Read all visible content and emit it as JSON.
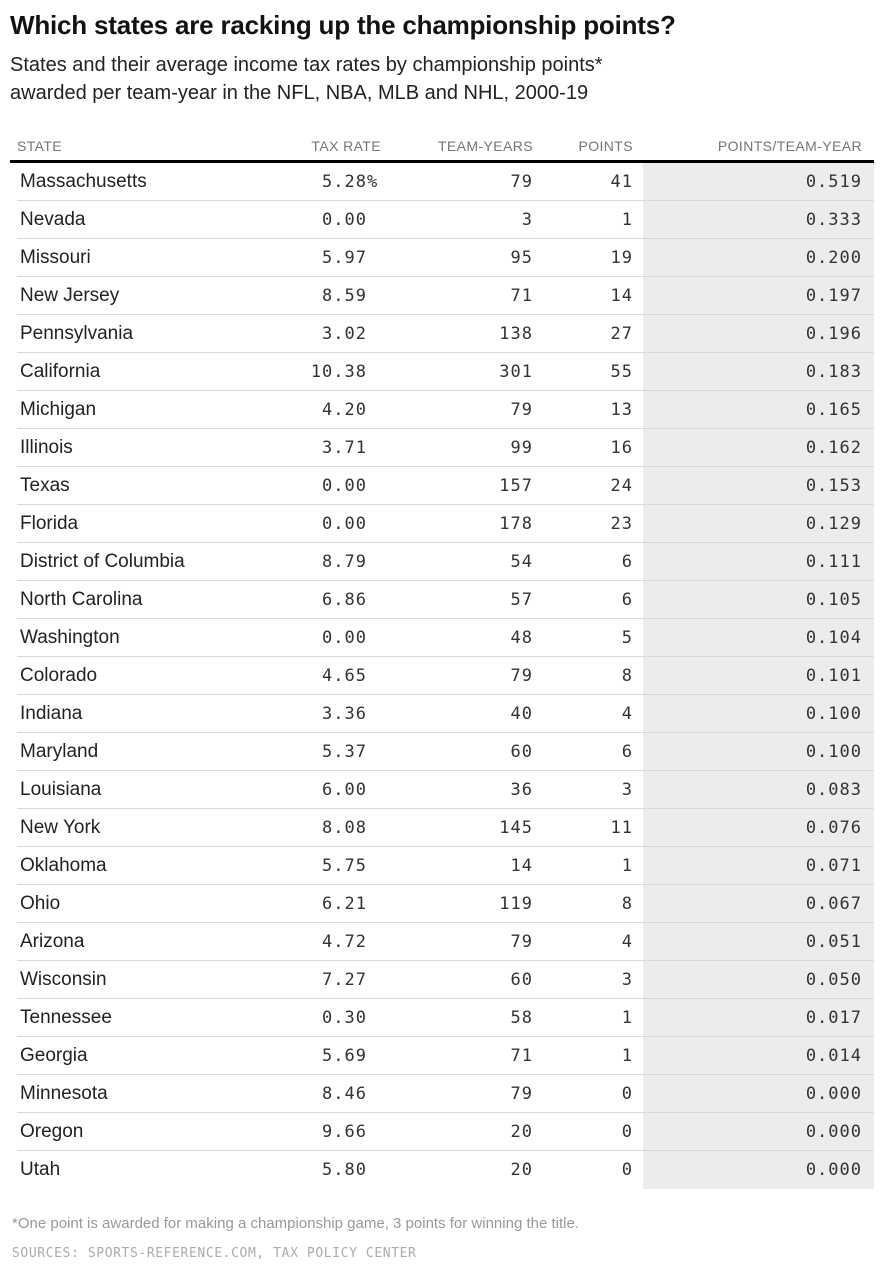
{
  "title": "Which states are racking up the championship points?",
  "subtitle_lines": [
    "States and their average income tax rates by championship points*",
    "awarded per team-year in the NFL, NBA, MLB and NHL, 2000-19"
  ],
  "table": {
    "columns": [
      "STATE",
      "TAX RATE",
      "TEAM-YEARS",
      "POINTS",
      "POINTS/TEAM-YEAR"
    ],
    "rows": [
      {
        "state": "Massachusetts",
        "tax_rate": "5.28",
        "tax_suffix": "%",
        "team_years": "79",
        "points": "41",
        "points_per_team_year": "0.519"
      },
      {
        "state": "Nevada",
        "tax_rate": "0.00",
        "tax_suffix": "",
        "team_years": "3",
        "points": "1",
        "points_per_team_year": "0.333"
      },
      {
        "state": "Missouri",
        "tax_rate": "5.97",
        "tax_suffix": "",
        "team_years": "95",
        "points": "19",
        "points_per_team_year": "0.200"
      },
      {
        "state": "New Jersey",
        "tax_rate": "8.59",
        "tax_suffix": "",
        "team_years": "71",
        "points": "14",
        "points_per_team_year": "0.197"
      },
      {
        "state": "Pennsylvania",
        "tax_rate": "3.02",
        "tax_suffix": "",
        "team_years": "138",
        "points": "27",
        "points_per_team_year": "0.196"
      },
      {
        "state": "California",
        "tax_rate": "10.38",
        "tax_suffix": "",
        "team_years": "301",
        "points": "55",
        "points_per_team_year": "0.183"
      },
      {
        "state": "Michigan",
        "tax_rate": "4.20",
        "tax_suffix": "",
        "team_years": "79",
        "points": "13",
        "points_per_team_year": "0.165"
      },
      {
        "state": "Illinois",
        "tax_rate": "3.71",
        "tax_suffix": "",
        "team_years": "99",
        "points": "16",
        "points_per_team_year": "0.162"
      },
      {
        "state": "Texas",
        "tax_rate": "0.00",
        "tax_suffix": "",
        "team_years": "157",
        "points": "24",
        "points_per_team_year": "0.153"
      },
      {
        "state": "Florida",
        "tax_rate": "0.00",
        "tax_suffix": "",
        "team_years": "178",
        "points": "23",
        "points_per_team_year": "0.129"
      },
      {
        "state": "District of Columbia",
        "tax_rate": "8.79",
        "tax_suffix": "",
        "team_years": "54",
        "points": "6",
        "points_per_team_year": "0.111"
      },
      {
        "state": "North Carolina",
        "tax_rate": "6.86",
        "tax_suffix": "",
        "team_years": "57",
        "points": "6",
        "points_per_team_year": "0.105"
      },
      {
        "state": "Washington",
        "tax_rate": "0.00",
        "tax_suffix": "",
        "team_years": "48",
        "points": "5",
        "points_per_team_year": "0.104"
      },
      {
        "state": "Colorado",
        "tax_rate": "4.65",
        "tax_suffix": "",
        "team_years": "79",
        "points": "8",
        "points_per_team_year": "0.101"
      },
      {
        "state": "Indiana",
        "tax_rate": "3.36",
        "tax_suffix": "",
        "team_years": "40",
        "points": "4",
        "points_per_team_year": "0.100"
      },
      {
        "state": "Maryland",
        "tax_rate": "5.37",
        "tax_suffix": "",
        "team_years": "60",
        "points": "6",
        "points_per_team_year": "0.100"
      },
      {
        "state": "Louisiana",
        "tax_rate": "6.00",
        "tax_suffix": "",
        "team_years": "36",
        "points": "3",
        "points_per_team_year": "0.083"
      },
      {
        "state": "New York",
        "tax_rate": "8.08",
        "tax_suffix": "",
        "team_years": "145",
        "points": "11",
        "points_per_team_year": "0.076"
      },
      {
        "state": "Oklahoma",
        "tax_rate": "5.75",
        "tax_suffix": "",
        "team_years": "14",
        "points": "1",
        "points_per_team_year": "0.071"
      },
      {
        "state": "Ohio",
        "tax_rate": "6.21",
        "tax_suffix": "",
        "team_years": "119",
        "points": "8",
        "points_per_team_year": "0.067"
      },
      {
        "state": "Arizona",
        "tax_rate": "4.72",
        "tax_suffix": "",
        "team_years": "79",
        "points": "4",
        "points_per_team_year": "0.051"
      },
      {
        "state": "Wisconsin",
        "tax_rate": "7.27",
        "tax_suffix": "",
        "team_years": "60",
        "points": "3",
        "points_per_team_year": "0.050"
      },
      {
        "state": "Tennessee",
        "tax_rate": "0.30",
        "tax_suffix": "",
        "team_years": "58",
        "points": "1",
        "points_per_team_year": "0.017"
      },
      {
        "state": "Georgia",
        "tax_rate": "5.69",
        "tax_suffix": "",
        "team_years": "71",
        "points": "1",
        "points_per_team_year": "0.014"
      },
      {
        "state": "Minnesota",
        "tax_rate": "8.46",
        "tax_suffix": "",
        "team_years": "79",
        "points": "0",
        "points_per_team_year": "0.000"
      },
      {
        "state": "Oregon",
        "tax_rate": "9.66",
        "tax_suffix": "",
        "team_years": "20",
        "points": "0",
        "points_per_team_year": "0.000"
      },
      {
        "state": "Utah",
        "tax_rate": "5.80",
        "tax_suffix": "",
        "team_years": "20",
        "points": "0",
        "points_per_team_year": "0.000"
      }
    ]
  },
  "footnote": "*One point is awarded for making a championship game, 3 points for winning the title.",
  "source": "SOURCES: SPORTS-REFERENCE.COM, TAX POLICY CENTER",
  "colors": {
    "band_background": "#ececec",
    "row_divider": "#d9d9d9",
    "header_rule": "#000000",
    "header_text": "#757575",
    "footnote_text": "#999999",
    "source_text": "#ababab"
  },
  "chart_data": {
    "type": "table",
    "title": "Which states are racking up the championship points?",
    "subtitle": "States and their average income tax rates by championship points* awarded per team-year in the NFL, NBA, MLB and NHL, 2000-19",
    "columns": [
      "STATE",
      "TAX RATE",
      "TEAM-YEARS",
      "POINTS",
      "POINTS/TEAM-YEAR"
    ],
    "rows": [
      [
        "Massachusetts",
        5.28,
        79,
        41,
        0.519
      ],
      [
        "Nevada",
        0.0,
        3,
        1,
        0.333
      ],
      [
        "Missouri",
        5.97,
        95,
        19,
        0.2
      ],
      [
        "New Jersey",
        8.59,
        71,
        14,
        0.197
      ],
      [
        "Pennsylvania",
        3.02,
        138,
        27,
        0.196
      ],
      [
        "California",
        10.38,
        301,
        55,
        0.183
      ],
      [
        "Michigan",
        4.2,
        79,
        13,
        0.165
      ],
      [
        "Illinois",
        3.71,
        99,
        16,
        0.162
      ],
      [
        "Texas",
        0.0,
        157,
        24,
        0.153
      ],
      [
        "Florida",
        0.0,
        178,
        23,
        0.129
      ],
      [
        "District of Columbia",
        8.79,
        54,
        6,
        0.111
      ],
      [
        "North Carolina",
        6.86,
        57,
        6,
        0.105
      ],
      [
        "Washington",
        0.0,
        48,
        5,
        0.104
      ],
      [
        "Colorado",
        4.65,
        79,
        8,
        0.101
      ],
      [
        "Indiana",
        3.36,
        40,
        4,
        0.1
      ],
      [
        "Maryland",
        5.37,
        60,
        6,
        0.1
      ],
      [
        "Louisiana",
        6.0,
        36,
        3,
        0.083
      ],
      [
        "New York",
        8.08,
        145,
        11,
        0.076
      ],
      [
        "Oklahoma",
        5.75,
        14,
        1,
        0.071
      ],
      [
        "Ohio",
        6.21,
        119,
        8,
        0.067
      ],
      [
        "Arizona",
        4.72,
        79,
        4,
        0.051
      ],
      [
        "Wisconsin",
        7.27,
        60,
        3,
        0.05
      ],
      [
        "Tennessee",
        0.3,
        58,
        1,
        0.017
      ],
      [
        "Georgia",
        5.69,
        71,
        1,
        0.014
      ],
      [
        "Minnesota",
        8.46,
        79,
        0,
        0.0
      ],
      [
        "Oregon",
        9.66,
        20,
        0,
        0.0
      ],
      [
        "Utah",
        5.8,
        20,
        0,
        0.0
      ]
    ],
    "notes": "Tax rate unit is percent (% shown on first row only); POINTS/TEAM-YEAR column is shaded."
  }
}
